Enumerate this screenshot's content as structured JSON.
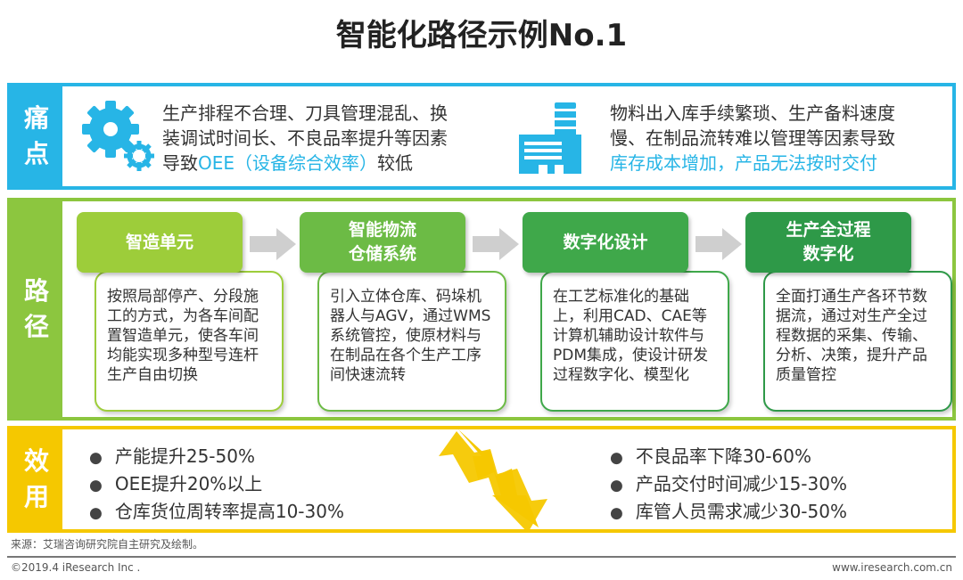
{
  "title": "智能化路径示例No.1",
  "pain": {
    "label": [
      "痛",
      "点"
    ],
    "left": {
      "line1": "生产排程不合理、刀具管理混乱、换",
      "line2": "装调试时间长、不良品率提升等因素",
      "line3a": "导致",
      "line3b": "OEE（设备综合效率）",
      "line3c": "较低"
    },
    "right": {
      "line1": "物料出入库手续繁琐、生产备料速度",
      "line2": "慢、在制品流转难以管理等因素导致",
      "line3": "库存成本增加，产品无法按时交付"
    }
  },
  "path": {
    "label": [
      "路",
      "径"
    ],
    "steps": [
      {
        "title": [
          "智造单元"
        ],
        "color": "#9dcd3a",
        "text": "按照局部停产、分段施工的方式，为各车间配置智造单元，使各车间均能实现多种型号连杆生产自由切换"
      },
      {
        "title": [
          "智能物流",
          "仓储系统"
        ],
        "color": "#6cbb45",
        "text": "引入立体仓库、码垛机器人与AGV，通过WMS系统管控，使原材料与在制品在各个生产工序间快速流转"
      },
      {
        "title": [
          "数字化设计"
        ],
        "color": "#3fa84a",
        "text": "在工艺标准化的基础上，利用CAD、CAE等计算机辅助设计软件与PDM集成，使设计研发过程数字化、模型化"
      },
      {
        "title": [
          "生产全过程",
          "数字化"
        ],
        "color": "#2e9948",
        "text": "全面打通生产各环节数据流，通过对生产全过程数据的采集、传输、分析、决策，提升产品质量管控"
      }
    ]
  },
  "effect": {
    "label": [
      "效",
      "用"
    ],
    "left": [
      "产能提升25-50%",
      "OEE提升20%以上",
      "仓库货位周转率提高10-30%"
    ],
    "right": [
      "不良品率下降30-60%",
      "产品交付时间减少15-30%",
      "库管人员需求减少30-50%"
    ]
  },
  "source": "来源：艾瑞咨询研究院自主研究及绘制。",
  "copyright": "©2019.4 iResearch Inc .",
  "website": "www.iresearch.com.cn",
  "colors": {
    "blue": "#27b5e6",
    "green": "#8cc63f",
    "yellow": "#f5c800"
  }
}
